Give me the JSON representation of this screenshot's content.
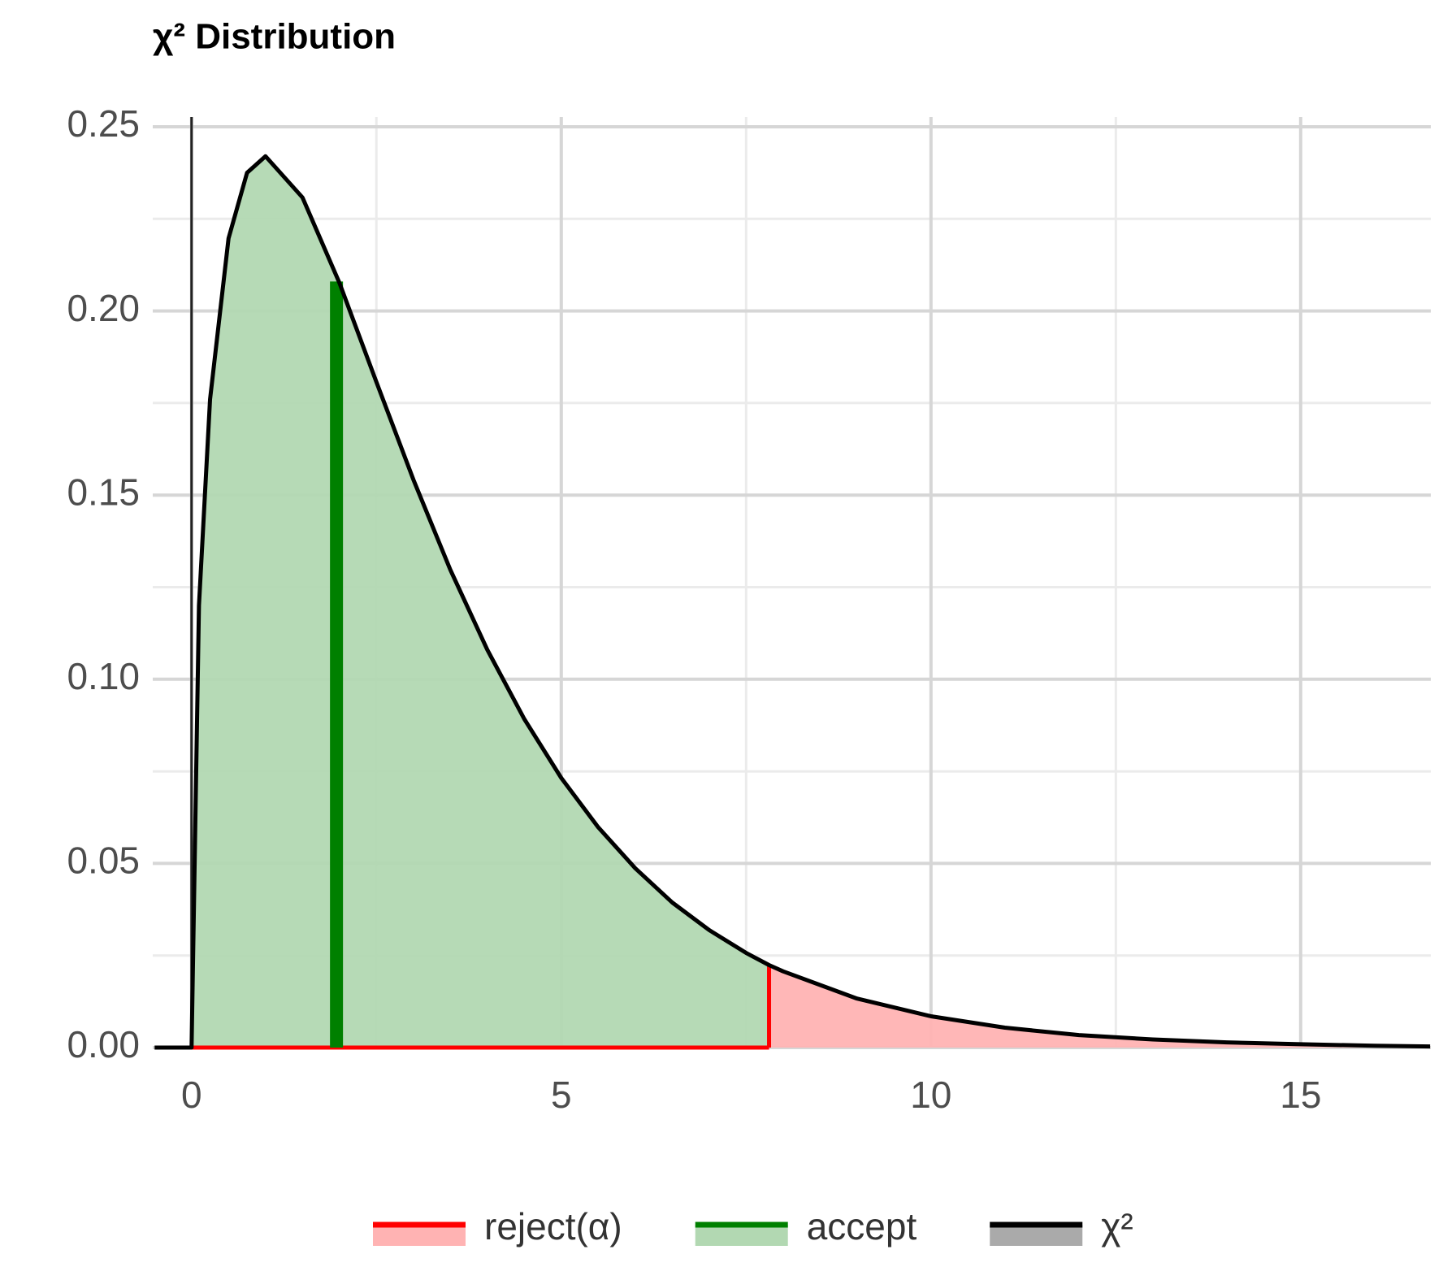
{
  "chart_data": {
    "type": "area",
    "title": "χ² Distribution",
    "x": [
      -0.5,
      0,
      0.1,
      0.25,
      0.5,
      0.75,
      1,
      1.5,
      2,
      2.5,
      3,
      3.5,
      4,
      4.5,
      5,
      5.5,
      6,
      6.5,
      7,
      7.5,
      7.81,
      8,
      9,
      10,
      11,
      12,
      13,
      14,
      15,
      16,
      16.75
    ],
    "series": [
      {
        "name": "χ²",
        "color": "#000000",
        "values": [
          0,
          0,
          0.12,
          0.176,
          0.2197,
          0.2375,
          0.242,
          0.2308,
          0.2076,
          0.1807,
          0.1542,
          0.1297,
          0.108,
          0.0892,
          0.0732,
          0.0598,
          0.0487,
          0.0394,
          0.0319,
          0.0257,
          0.0224,
          0.0207,
          0.0133,
          0.0085,
          0.0054,
          0.0034,
          0.0022,
          0.0014,
          0.0009,
          0.0005,
          0.0003
        ]
      }
    ],
    "critical_value": {
      "x": 7.81,
      "y": 0.0224
    },
    "statistic": {
      "x": 1.96,
      "y": 0.208
    },
    "legend": [
      {
        "name": "reject(α)",
        "color": "#ff0000",
        "fill": "#ffb3b3"
      },
      {
        "name": "accept",
        "color": "#008000",
        "fill": "#b2d8b2"
      },
      {
        "name": "χ²",
        "color": "#000000",
        "fill": "#aaaaaa"
      }
    ],
    "xlim": [
      -0.525,
      16.76
    ],
    "ylim": [
      0,
      0.25
    ],
    "xticks": [
      0,
      5,
      10,
      15
    ],
    "yticks": [
      {
        "value": 0,
        "label": "0.00"
      },
      {
        "value": 0.05,
        "label": "0.05"
      },
      {
        "value": 0.1,
        "label": "0.10"
      },
      {
        "value": 0.15,
        "label": "0.15"
      },
      {
        "value": 0.2,
        "label": "0.20"
      },
      {
        "value": 0.25,
        "label": "0.25"
      }
    ],
    "minor_xticks": [
      2.5,
      7.5,
      12.5
    ],
    "minor_yticks": [
      0.025,
      0.075,
      0.125,
      0.175,
      0.225
    ],
    "grid": true
  }
}
